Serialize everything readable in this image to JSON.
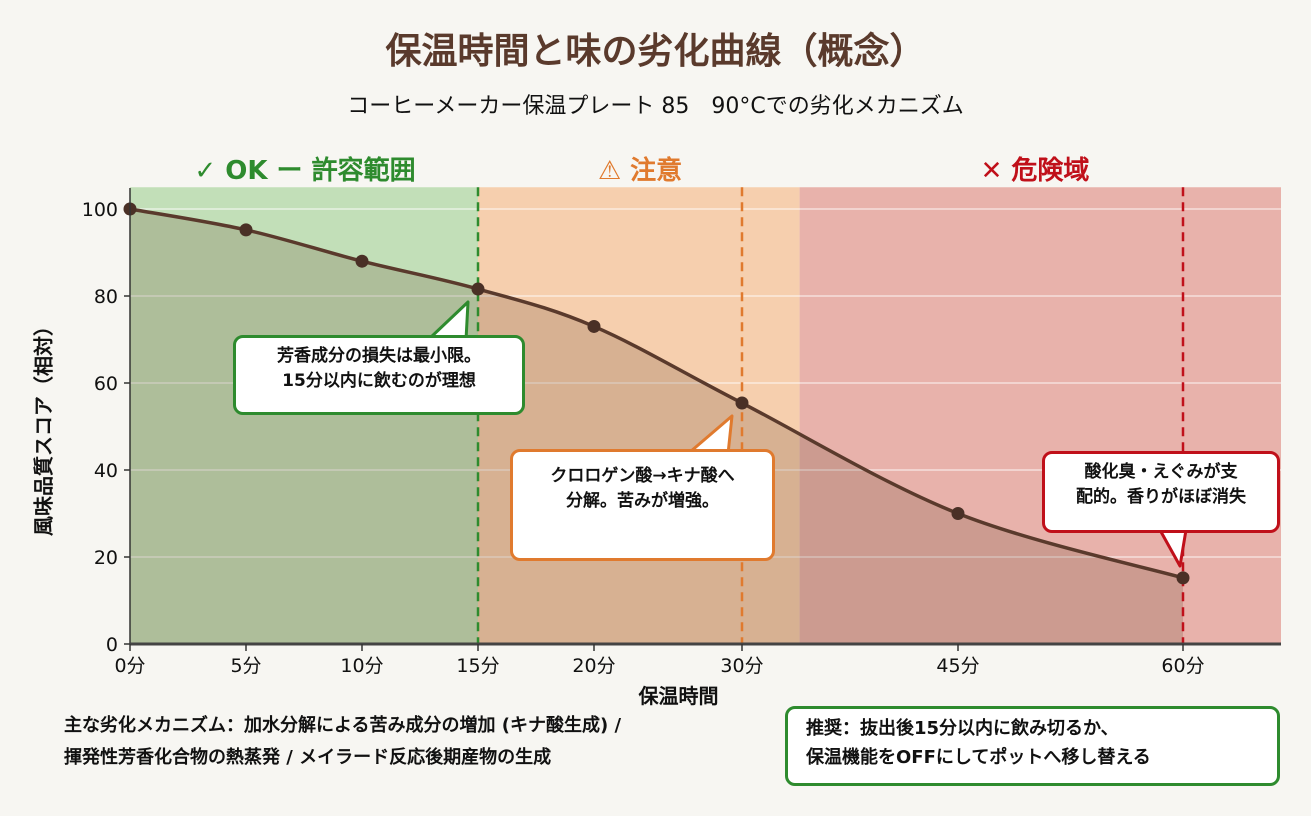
{
  "title": "保温時間と味の劣化曲線（概念）",
  "subtitle": "コーヒーメーカー保温プレート 85　90°Cでの劣化メカニズム",
  "colors": {
    "title": "#5a3a2c",
    "curve": "#5a3a2c",
    "ok": "#2e8b2e",
    "caution": "#e07a2e",
    "danger": "#c0101a",
    "zone_ok": "#c2dfb8",
    "zone_caution": "#f6cfae",
    "zone_danger": "#e8b2ab"
  },
  "chart_data": {
    "type": "line",
    "xlabel": "保温時間",
    "ylabel": "風味品質スコア（相対）",
    "ylim": [
      0,
      105
    ],
    "yticks": [
      0,
      20,
      40,
      60,
      80,
      100
    ],
    "x": [
      0,
      5,
      10,
      15,
      20,
      30,
      45,
      60
    ],
    "xtick_labels": [
      "0分",
      "5分",
      "10分",
      "15分",
      "20分",
      "30分",
      "45分",
      "60分"
    ],
    "x_scale": "non-uniform",
    "values": [
      100,
      95.2,
      88,
      81.6,
      73,
      55.4,
      30,
      15.2
    ],
    "grid": true,
    "zones": [
      {
        "label": "✓ OK ー 許容範囲",
        "from": 0,
        "to": 15,
        "color": "#c2dfb8",
        "text_color": "#2e8b2e",
        "marker_at": 15,
        "marker_color": "#2e8b2e"
      },
      {
        "label": "⚠ 注意",
        "from": 15,
        "to": 34,
        "color": "#f6cfae",
        "text_color": "#e07a2e",
        "marker_at": 30,
        "marker_color": "#e07a2e"
      },
      {
        "label": "✕ 危険域",
        "from": 34,
        "to": 66,
        "color": "#e8b2ab",
        "text_color": "#c0101a",
        "marker_at": 60,
        "marker_color": "#c0101a"
      }
    ],
    "annotations": [
      {
        "text_lines": [
          "芳香成分の損失は最小限。",
          "15分以内に飲むのが理想"
        ],
        "color": "#2e8b2e",
        "points_to": 15
      },
      {
        "text_lines": [
          "クロロゲン酸→キナ酸へ",
          "分解。苦みが増強。"
        ],
        "color": "#e07a2e",
        "points_to": 30
      },
      {
        "text_lines": [
          "酸化臭・えぐみが支",
          "配的。香りがほぼ消失"
        ],
        "color": "#c0101a",
        "points_to": 60
      }
    ]
  },
  "notes": {
    "line1": "主な劣化メカニズム：加水分解による苦み成分の増加 (キナ酸生成) /",
    "line2": "揮発性芳香化合物の熱蒸発 / メイラード反応後期産物の生成"
  },
  "recommendation": {
    "line1": "推奨：抜出後15分以内に飲み切るか、",
    "line2": "保温機能をOFFにしてポットへ移し替える"
  }
}
